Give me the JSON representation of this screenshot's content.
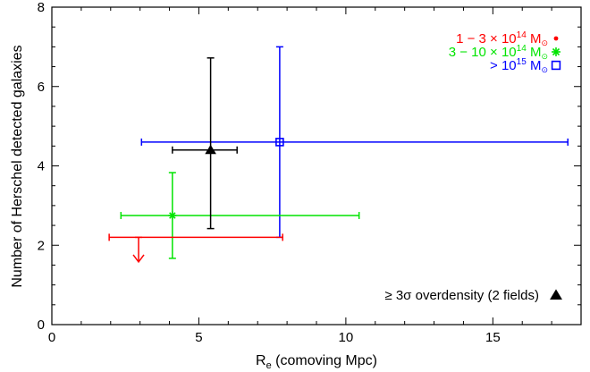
{
  "chart_data": {
    "type": "scatter",
    "xlabel_main": "R",
    "xlabel_sub": "e",
    "xlabel_rest": " (comoving Mpc)",
    "ylabel": "Number of Herschel detected galaxies",
    "xlim": [
      0,
      18
    ],
    "ylim": [
      0,
      8
    ],
    "x_ticks": [
      0,
      5,
      10,
      15
    ],
    "y_ticks": [
      0,
      2,
      4,
      6,
      8
    ],
    "x_tick_labels": [
      "0",
      "5",
      "10",
      "15"
    ],
    "y_tick_labels": [
      "0",
      "2",
      "4",
      "6",
      "8"
    ],
    "grid": false,
    "legend_position": "top-right",
    "series": [
      {
        "name_main": "1 − 3 × 10",
        "name_sup": "14",
        "name_unit": " M",
        "name_unit_sub": "⊙",
        "color": "#ff0000",
        "marker": "dot",
        "upper_limit": true,
        "x": 2.95,
        "y": 2.2,
        "xerr": [
          1.95,
          7.85
        ],
        "yerr": [
          1.58,
          2.2
        ]
      },
      {
        "name_main": "3 − 10 × 10",
        "name_sup": "14",
        "name_unit": " M",
        "name_unit_sub": "⊙",
        "color": "#00e400",
        "marker": "asterisk",
        "x": 4.1,
        "y": 2.75,
        "xerr": [
          2.35,
          10.45
        ],
        "yerr": [
          1.67,
          3.83
        ]
      },
      {
        "name_main": "> 10",
        "name_sup": "15",
        "name_unit": " M",
        "name_unit_sub": "⊙",
        "color": "#0000ff",
        "marker": "square",
        "x": 7.75,
        "y": 4.6,
        "xerr": [
          3.05,
          17.55
        ],
        "yerr": [
          2.2,
          7.0
        ]
      },
      {
        "name_main": "≥ 3σ overdensity (2 fields)",
        "color": "#000000",
        "marker": "triangle",
        "x": 5.4,
        "y": 4.4,
        "xerr": [
          4.1,
          6.3
        ],
        "yerr": [
          2.42,
          6.72
        ]
      }
    ]
  }
}
